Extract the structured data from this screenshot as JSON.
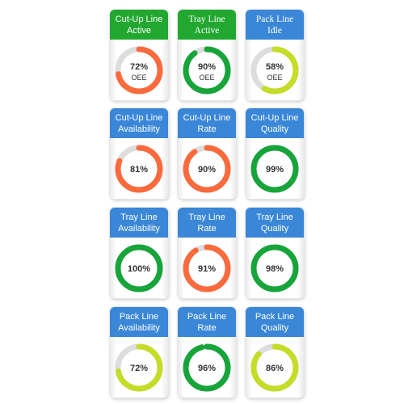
{
  "colors": {
    "active_header": "#22a830",
    "idle_header": "#3a87d8",
    "metric_header": "#3a87d8",
    "track": "#dddddd",
    "orange": "#fb6a3d",
    "green": "#17a43a",
    "lime": "#c5dc28"
  },
  "cards": [
    {
      "line1": "Cut-Up Line",
      "line2": "Active",
      "header": "active_header",
      "font": "sans",
      "value": 72,
      "label": "72%",
      "sub": "OEE",
      "color": "orange"
    },
    {
      "line1": "Tray Line",
      "line2": "Active",
      "header": "active_header",
      "font": "serif",
      "value": 90,
      "label": "90%",
      "sub": "OEE",
      "color": "green"
    },
    {
      "line1": "Pack Line",
      "line2": "Idle",
      "header": "idle_header",
      "font": "serif",
      "value": 58,
      "label": "58%",
      "sub": "OEE",
      "color": "lime"
    },
    {
      "line1": "Cut-Up Line",
      "line2": "Availability",
      "header": "metric_header",
      "font": "sans",
      "value": 81,
      "label": "81%",
      "color": "orange"
    },
    {
      "line1": "Cut-Up Line",
      "line2": "Rate",
      "header": "metric_header",
      "font": "sans",
      "value": 90,
      "label": "90%",
      "color": "orange"
    },
    {
      "line1": "Cut-Up Line",
      "line2": "Quality",
      "header": "metric_header",
      "font": "sans",
      "value": 99,
      "label": "99%",
      "color": "green"
    },
    {
      "line1": "Tray Line",
      "line2": "Availability",
      "header": "metric_header",
      "font": "sans",
      "value": 100,
      "label": "100%",
      "color": "green"
    },
    {
      "line1": "Tray Line",
      "line2": "Rate",
      "header": "metric_header",
      "font": "sans",
      "value": 91,
      "label": "91%",
      "color": "orange"
    },
    {
      "line1": "Tray Line",
      "line2": "Quality",
      "header": "metric_header",
      "font": "sans",
      "value": 98,
      "label": "98%",
      "color": "green"
    },
    {
      "line1": "Pack Line",
      "line2": "Availability",
      "header": "metric_header",
      "font": "sans",
      "value": 72,
      "label": "72%",
      "color": "lime"
    },
    {
      "line1": "Pack Line",
      "line2": "Rate",
      "header": "metric_header",
      "font": "sans",
      "value": 96,
      "label": "96%",
      "color": "green"
    },
    {
      "line1": "Pack Line",
      "line2": "Quality",
      "header": "metric_header",
      "font": "sans",
      "value": 86,
      "label": "86%",
      "color": "lime"
    }
  ]
}
